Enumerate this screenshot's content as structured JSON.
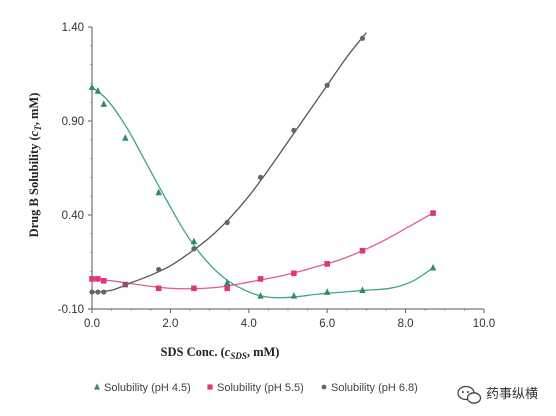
{
  "chart_data": {
    "type": "line",
    "title": "",
    "xlabel": {
      "prefix": "SDS Conc. (",
      "var": "c",
      "sub": "SDS",
      "suffix": ", mM)"
    },
    "ylabel": {
      "prefix": "Drug B Solubility (",
      "var": "c",
      "sub": "T",
      "suffix": ", mM)"
    },
    "xlim": [
      0,
      10
    ],
    "ylim": [
      -0.1,
      1.4
    ],
    "x_ticks": [
      "0.0",
      "2.0",
      "4.0",
      "6.0",
      "8.0",
      "10.0"
    ],
    "y_ticks": [
      "-0.10",
      "0.40",
      "0.90",
      "1.40"
    ],
    "grid": false,
    "legend_position": "bottom",
    "series": [
      {
        "name": "Solubility (pH 4.5)",
        "marker": "triangle",
        "color": "#2e8b6e",
        "line_color": "#3aa58a",
        "x": [
          0.0,
          0.15,
          0.3,
          0.85,
          1.7,
          2.6,
          3.45,
          4.3,
          5.15,
          6.0,
          6.9,
          8.7
        ],
        "y": [
          1.08,
          1.06,
          0.99,
          0.81,
          0.52,
          0.26,
          0.04,
          -0.03,
          -0.03,
          -0.01,
          0.0,
          0.12
        ],
        "curve_x": [
          0.0,
          0.4,
          0.9,
          1.4,
          1.9,
          2.4,
          2.9,
          3.4,
          3.9,
          4.3,
          4.7,
          5.2,
          5.8,
          6.4,
          7.0,
          7.6,
          8.1,
          8.5,
          8.7
        ],
        "curve_y": [
          1.08,
          1.01,
          0.86,
          0.67,
          0.48,
          0.3,
          0.16,
          0.06,
          0.0,
          -0.03,
          -0.04,
          -0.035,
          -0.02,
          -0.01,
          0.0,
          0.01,
          0.04,
          0.09,
          0.12
        ]
      },
      {
        "name": "Solubility (pH 5.5)",
        "marker": "square",
        "color": "#e0357a",
        "line_color": "#e45b8e",
        "x": [
          0.0,
          0.15,
          0.3,
          0.85,
          1.7,
          2.6,
          3.45,
          4.3,
          5.15,
          6.0,
          6.9,
          8.7
        ],
        "y": [
          0.06,
          0.06,
          0.05,
          0.03,
          0.01,
          0.01,
          0.01,
          0.06,
          0.09,
          0.14,
          0.21,
          0.41
        ],
        "curve_x": [
          0.0,
          0.5,
          1.0,
          1.5,
          2.0,
          2.6,
          3.2,
          3.8,
          4.3,
          4.8,
          5.3,
          5.8,
          6.3,
          6.9,
          7.5,
          8.1,
          8.7
        ],
        "curve_y": [
          0.06,
          0.05,
          0.035,
          0.02,
          0.01,
          0.008,
          0.015,
          0.035,
          0.055,
          0.075,
          0.1,
          0.13,
          0.16,
          0.21,
          0.27,
          0.34,
          0.41
        ]
      },
      {
        "name": "Solubility (pH 6.8)",
        "marker": "circle",
        "color": "#666666",
        "line_color": "#555555",
        "x": [
          0.0,
          0.15,
          0.3,
          0.85,
          1.7,
          2.6,
          3.45,
          4.3,
          5.15,
          6.0,
          6.9
        ],
        "y": [
          -0.01,
          -0.01,
          -0.01,
          0.03,
          0.11,
          0.22,
          0.36,
          0.6,
          0.85,
          1.09,
          1.34
        ],
        "curve_x": [
          0.0,
          0.5,
          1.0,
          1.5,
          2.0,
          2.5,
          3.0,
          3.5,
          4.0,
          4.5,
          5.0,
          5.5,
          6.0,
          6.5,
          7.0
        ],
        "curve_y": [
          -0.01,
          0.0,
          0.04,
          0.08,
          0.13,
          0.2,
          0.28,
          0.38,
          0.5,
          0.64,
          0.79,
          0.94,
          1.09,
          1.24,
          1.37
        ]
      }
    ]
  },
  "watermark": {
    "text": "药事纵横",
    "icon": "wechat-icon"
  }
}
